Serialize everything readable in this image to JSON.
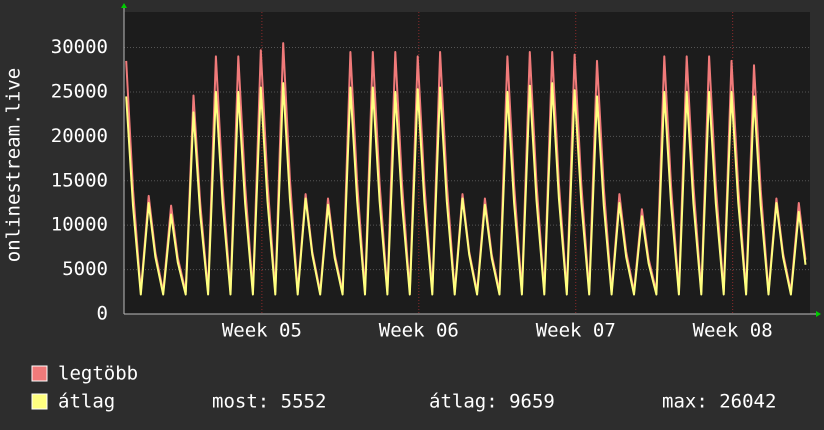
{
  "chart_data": {
    "type": "line",
    "y_label": "onlinestream.live",
    "x": [
      0.1,
      0.4,
      0.75,
      1.1,
      1.4,
      1.75,
      2.1,
      2.4,
      2.75,
      3.1,
      3.4,
      3.75,
      4.1,
      4.4,
      4.75,
      5.1,
      5.4,
      5.75,
      6.1,
      6.4,
      6.75,
      7.1,
      7.4,
      7.75,
      8.1,
      8.4,
      8.75,
      9.1,
      9.4,
      9.75,
      10.1,
      10.4,
      10.75,
      11.1,
      11.4,
      11.75,
      12.1,
      12.4,
      12.75,
      13.1,
      13.4,
      13.75,
      14.1,
      14.4,
      14.75,
      15.1,
      15.4,
      15.75,
      16.1,
      16.4,
      16.75,
      17.1,
      17.4,
      17.75,
      18.1,
      18.4,
      18.75,
      19.1,
      19.4,
      19.75,
      20.1,
      20.4,
      20.75,
      21.1,
      21.4,
      21.75,
      22.1,
      22.4,
      22.75,
      23.1,
      23.4,
      23.75,
      24.1,
      24.4,
      24.75,
      25.1,
      25.4,
      25.75,
      26.1,
      26.4,
      26.75,
      27.1,
      27.4,
      27.75,
      28.1,
      28.4,
      28.75,
      29.1,
      29.4,
      29.75,
      30.1,
      30.4
    ],
    "series": [
      {
        "name": "legtöbb",
        "color": "#f07a7a",
        "values": [
          28500,
          14000,
          2500,
          13300,
          6900,
          2500,
          12200,
          6300,
          2500,
          24600,
          12500,
          2500,
          29000,
          14500,
          2500,
          29000,
          14500,
          2500,
          29700,
          14800,
          2500,
          30500,
          15200,
          2500,
          13500,
          7000,
          2500,
          13000,
          6700,
          2500,
          29500,
          14700,
          2500,
          29500,
          14700,
          2500,
          29500,
          14700,
          2500,
          29000,
          14500,
          2500,
          29500,
          14700,
          2500,
          13500,
          7000,
          2500,
          13000,
          6700,
          2500,
          29000,
          14500,
          2500,
          29500,
          14700,
          2500,
          29500,
          14700,
          2500,
          29200,
          14600,
          2500,
          28500,
          14200,
          2500,
          13500,
          7000,
          2500,
          11800,
          6200,
          2500,
          29000,
          14500,
          2500,
          29000,
          14500,
          2500,
          29000,
          14500,
          2500,
          28500,
          14200,
          2500,
          28000,
          14000,
          2500,
          13000,
          6800,
          2500,
          12500,
          6100
        ]
      },
      {
        "name": "átlag",
        "color": "#ffff80",
        "values": [
          24500,
          12200,
          2200,
          12500,
          6400,
          2200,
          11200,
          5800,
          2200,
          22700,
          11300,
          2200,
          25000,
          12500,
          2200,
          25000,
          12500,
          2200,
          25500,
          12700,
          2200,
          26000,
          13000,
          2200,
          13000,
          6700,
          2200,
          12300,
          6300,
          2200,
          25500,
          12700,
          2200,
          25500,
          12700,
          2200,
          25000,
          12500,
          2200,
          25300,
          12600,
          2200,
          25500,
          12700,
          2200,
          13000,
          6700,
          2200,
          12300,
          6300,
          2200,
          25000,
          12500,
          2200,
          25700,
          12800,
          2200,
          26000,
          13000,
          2200,
          25200,
          12600,
          2200,
          24500,
          12200,
          2200,
          12500,
          6400,
          2200,
          11000,
          5700,
          2200,
          25000,
          12500,
          2200,
          25000,
          12500,
          2200,
          25000,
          12500,
          2200,
          25000,
          12500,
          2200,
          24500,
          12200,
          2200,
          12500,
          6400,
          2200,
          11500,
          5552
        ]
      }
    ],
    "stats": [
      "most: 5552",
      "átlag: 9659",
      "max: 26042"
    ],
    "xlim": [
      0,
      30.6
    ],
    "xticks": [
      {
        "value": 6.15,
        "label": "Week 05"
      },
      {
        "value": 13.15,
        "label": "Week 06"
      },
      {
        "value": 20.15,
        "label": "Week 07"
      },
      {
        "value": 27.15,
        "label": "Week 08"
      }
    ],
    "ylim": [
      0,
      34000
    ],
    "yticks": [
      0,
      5000,
      10000,
      15000,
      20000,
      25000,
      30000
    ],
    "grid": true
  }
}
